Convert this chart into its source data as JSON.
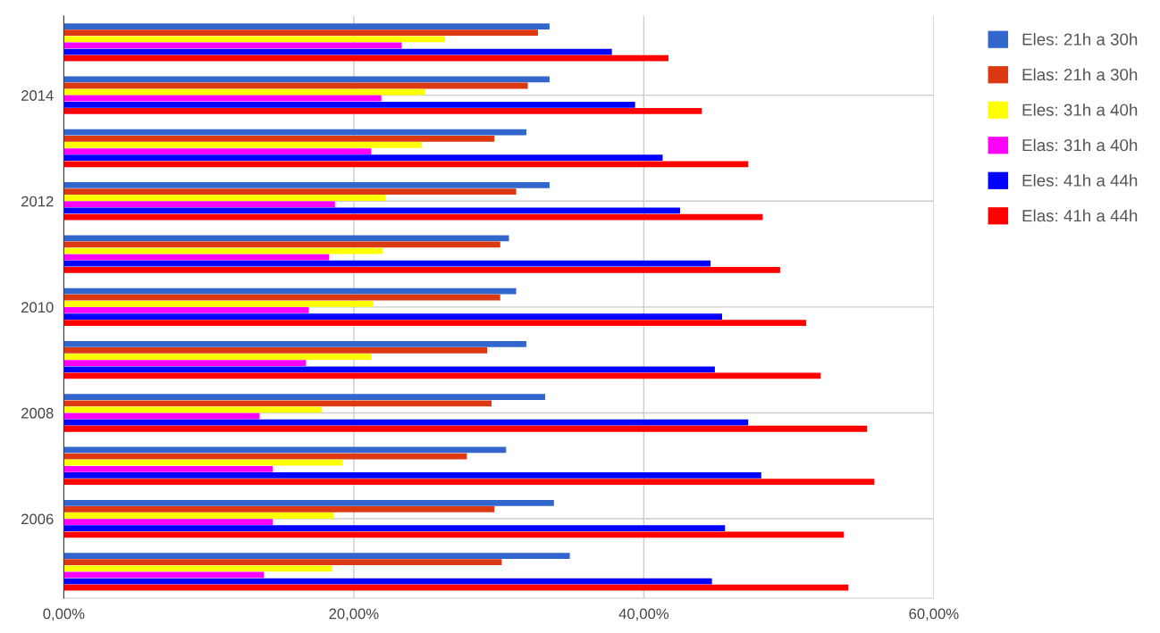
{
  "chart_data": {
    "type": "bar",
    "orientation": "horizontal",
    "categories": [
      null,
      "2014",
      null,
      "2012",
      null,
      "2010",
      null,
      "2008",
      null,
      "2006",
      null
    ],
    "series": [
      {
        "name": "Eles: 21h a 30h",
        "color": "#3366cc",
        "values": [
          33.5,
          33.5,
          31.9,
          33.5,
          30.7,
          31.2,
          31.9,
          33.2,
          30.5,
          33.8,
          34.9
        ]
      },
      {
        "name": "Elas: 21h a 30h",
        "color": "#dc3912",
        "values": [
          32.7,
          32.0,
          29.7,
          31.2,
          30.1,
          30.1,
          29.2,
          29.5,
          27.8,
          29.7,
          30.2
        ]
      },
      {
        "name": "Eles: 31h a 40h",
        "color": "#ffff00",
        "values": [
          26.3,
          24.9,
          24.7,
          22.2,
          22.0,
          21.3,
          21.2,
          17.8,
          19.2,
          18.6,
          18.5
        ]
      },
      {
        "name": "Elas: 31h a 40h",
        "color": "#ff00ff",
        "values": [
          23.3,
          21.9,
          21.2,
          18.7,
          18.3,
          16.9,
          16.7,
          13.5,
          14.4,
          14.4,
          13.8
        ]
      },
      {
        "name": "Eles: 41h a 44h",
        "color": "#0000ff",
        "values": [
          37.8,
          39.4,
          41.3,
          42.5,
          44.6,
          45.4,
          44.9,
          47.2,
          48.1,
          45.6,
          44.7
        ]
      },
      {
        "name": "Elas: 41h a 44h",
        "color": "#ff0000",
        "values": [
          41.7,
          44.0,
          47.2,
          48.2,
          49.4,
          51.2,
          52.2,
          55.4,
          55.9,
          53.8,
          54.1
        ]
      }
    ],
    "xlim": [
      0,
      60
    ],
    "xticks": [
      {
        "value": 0,
        "label": "0,00%"
      },
      {
        "value": 20,
        "label": "20,00%"
      },
      {
        "value": 40,
        "label": "40,00%"
      },
      {
        "value": 60,
        "label": "60,00%"
      }
    ],
    "grid": true,
    "legend": "top right"
  }
}
